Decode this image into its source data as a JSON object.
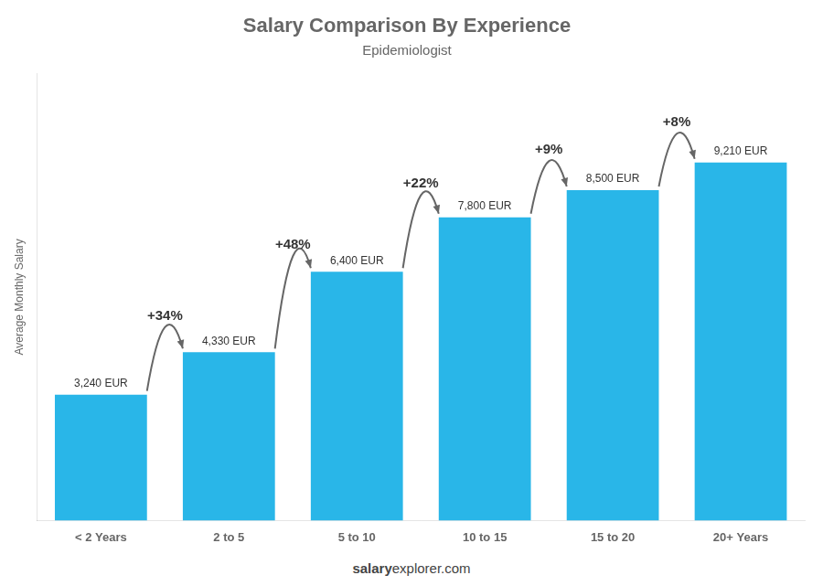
{
  "chart_data": {
    "type": "bar",
    "title": "Salary Comparison By Experience",
    "subtitle": "Epidemiologist",
    "categories": [
      "< 2 Years",
      "2 to 5",
      "5 to 10",
      "10 to 15",
      "15 to 20",
      "20+ Years"
    ],
    "values": [
      3240,
      4330,
      6400,
      7800,
      8500,
      9210
    ],
    "value_labels": [
      "3,240 EUR",
      "4,330 EUR",
      "6,400 EUR",
      "7,800 EUR",
      "8,500 EUR",
      "9,210 EUR"
    ],
    "data_labels": true,
    "annotations": [
      "+34%",
      "+48%",
      "+22%",
      "+9%",
      "+8%"
    ],
    "ylabel": "Average Monthly Salary",
    "footer": [
      "salary",
      "explorer.com"
    ],
    "color": "#29b6e8",
    "ylim": [
      0,
      11500
    ],
    "tick_labels": "x",
    "grid": false
  }
}
